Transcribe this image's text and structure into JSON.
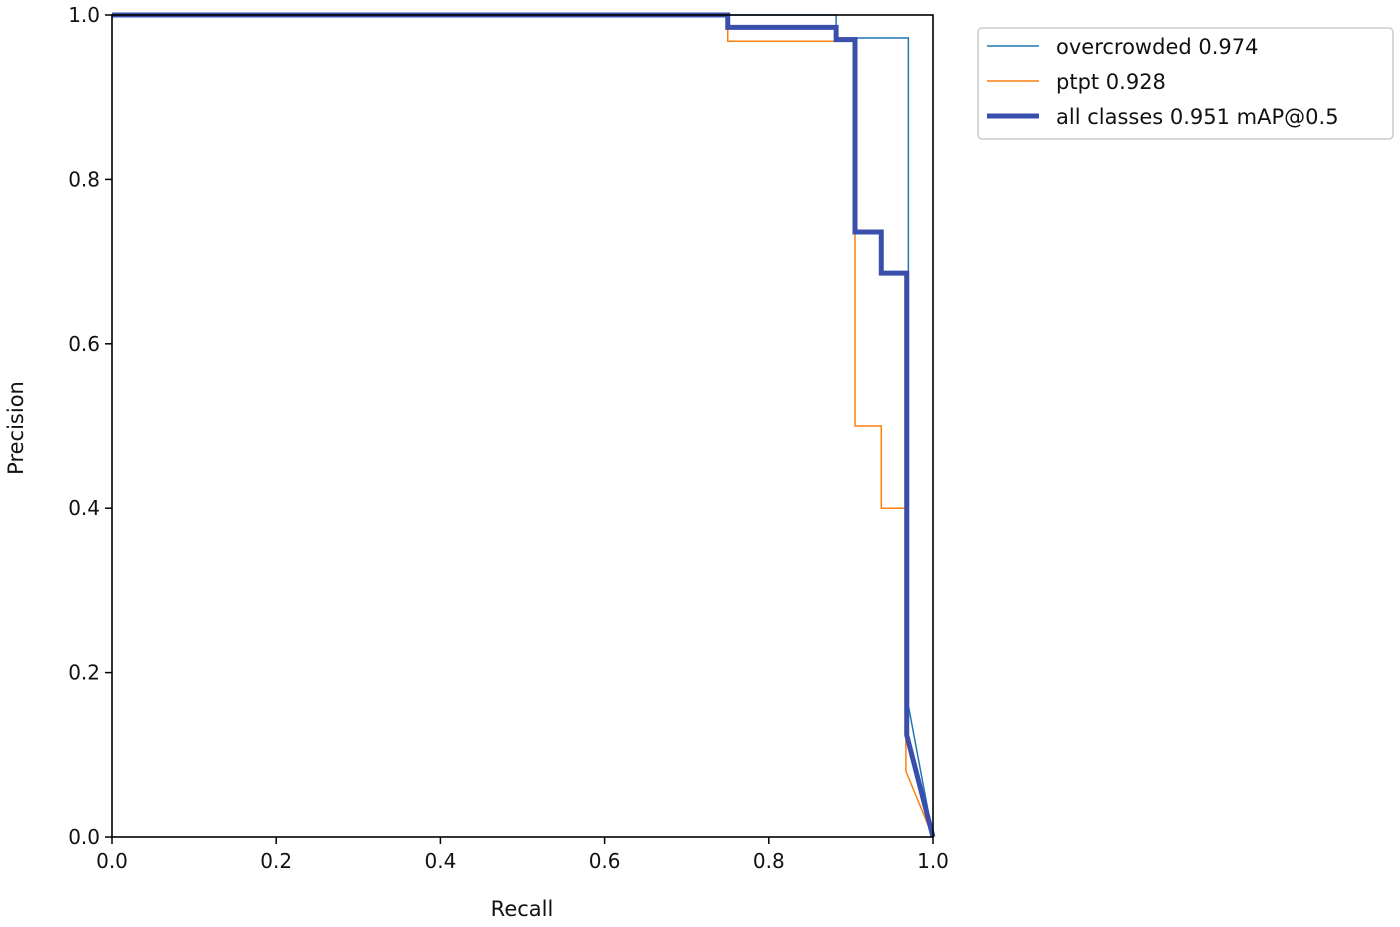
{
  "chart_data": {
    "type": "line",
    "title": "",
    "xlabel": "Recall",
    "ylabel": "Precision",
    "xlim": [
      0,
      1
    ],
    "ylim": [
      0,
      1
    ],
    "xticks": [
      "0.0",
      "0.2",
      "0.4",
      "0.6",
      "0.8",
      "1.0"
    ],
    "yticks": [
      "0.0",
      "0.2",
      "0.4",
      "0.6",
      "0.8",
      "1.0"
    ],
    "grid": false,
    "legend_position": "outside-top-right",
    "series": [
      {
        "name": "overcrowded 0.974",
        "color": "#1f77b4",
        "width": 1.5,
        "x": [
          0,
          0.882,
          0.882,
          0.97,
          0.97,
          1.0
        ],
        "y": [
          1.0,
          1.0,
          0.972,
          0.972,
          0.16,
          0.0
        ]
      },
      {
        "name": "ptpt 0.928",
        "color": "#ff7f0e",
        "width": 1.5,
        "x": [
          0,
          0.75,
          0.75,
          0.905,
          0.905,
          0.937,
          0.937,
          0.967,
          0.967,
          1.0
        ],
        "y": [
          1.0,
          1.0,
          0.968,
          0.968,
          0.5,
          0.5,
          0.4,
          0.4,
          0.08,
          0.0
        ]
      },
      {
        "name": "all classes 0.951 mAP@0.5",
        "color": "#3a4fac",
        "width": 5,
        "x": [
          0,
          0.75,
          0.75,
          0.882,
          0.882,
          0.905,
          0.905,
          0.937,
          0.937,
          0.968,
          0.968,
          1.0
        ],
        "y": [
          1.0,
          1.0,
          0.985,
          0.985,
          0.97,
          0.97,
          0.736,
          0.736,
          0.686,
          0.686,
          0.124,
          0.0
        ]
      }
    ]
  }
}
